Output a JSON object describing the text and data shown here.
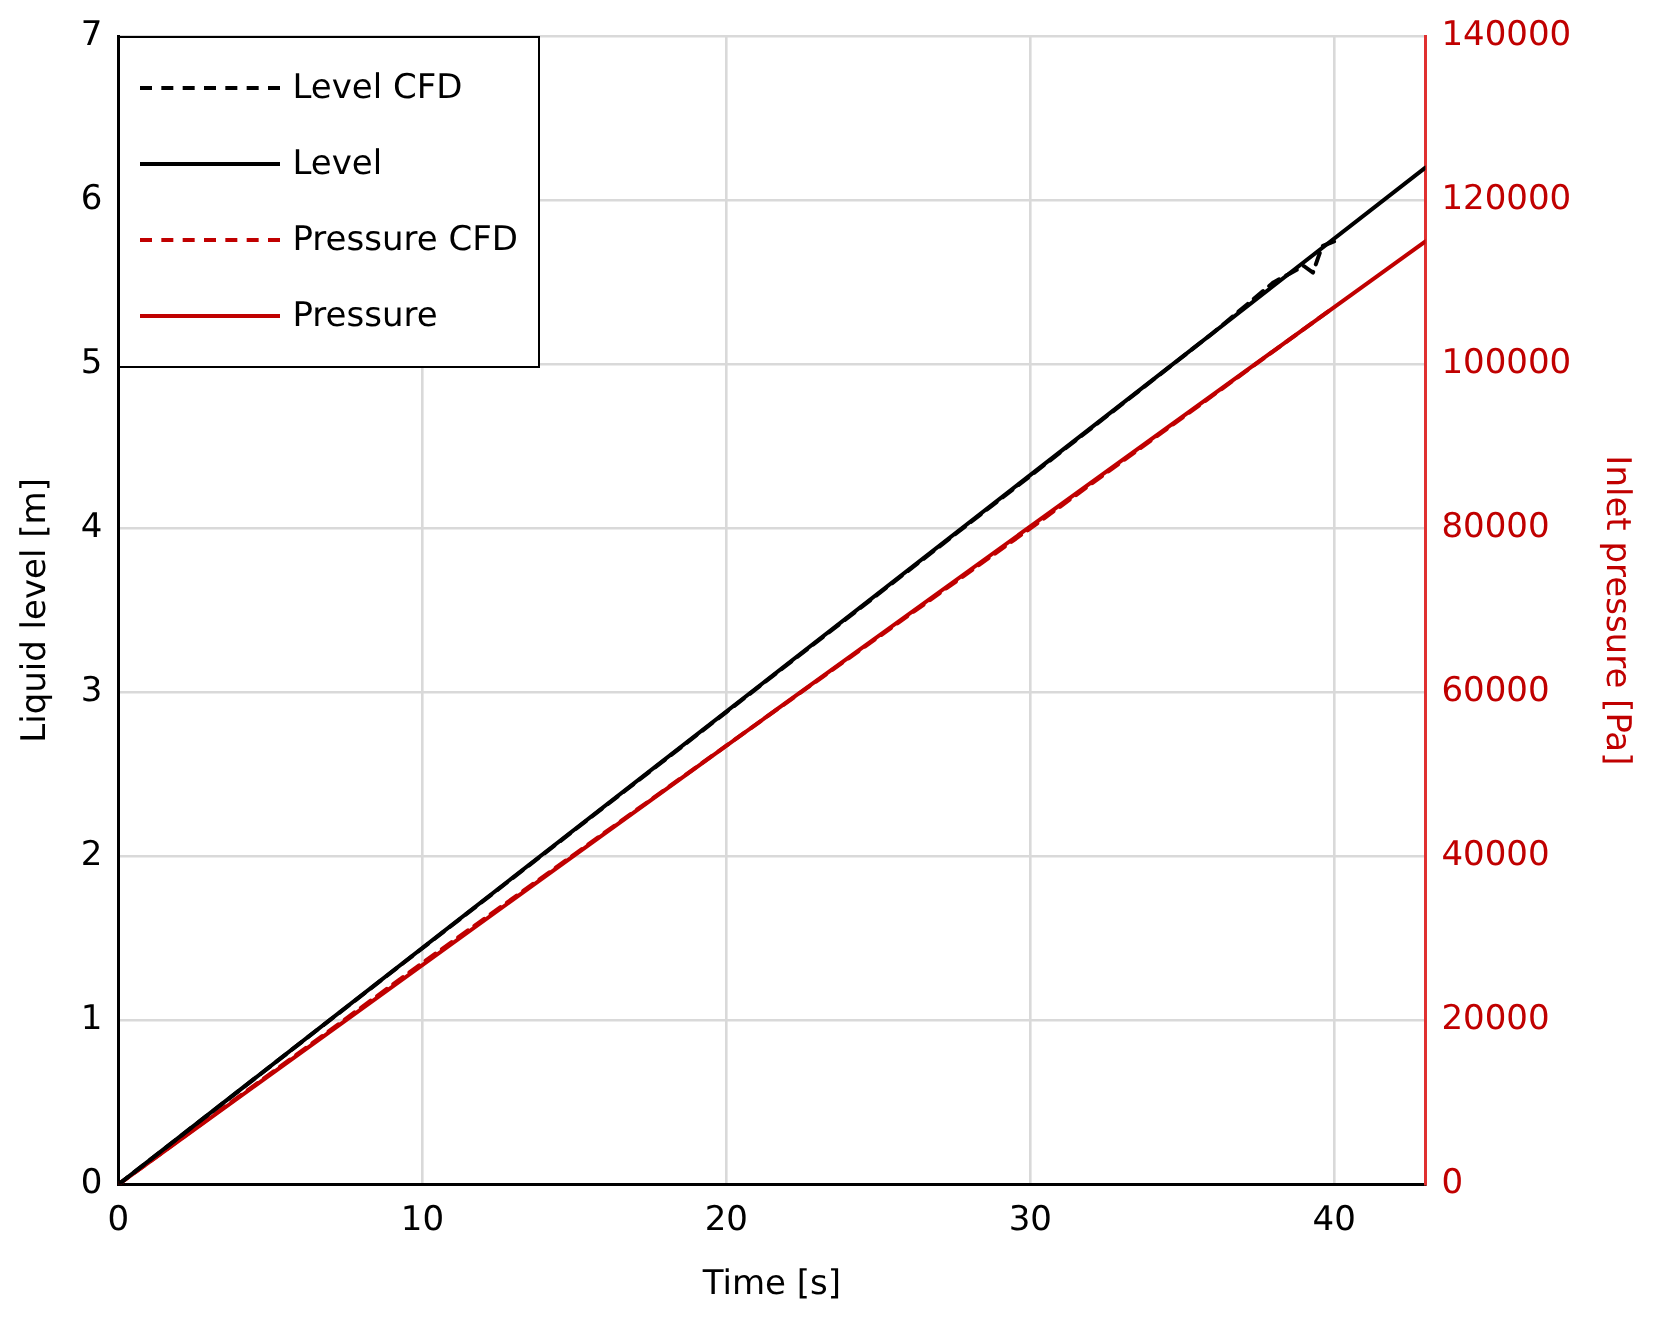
{
  "chart_data": {
    "type": "line",
    "xlabel": "Time [s]",
    "ylabel": "Liquid level [m]",
    "y2label": "Inlet pressure [Pa]",
    "xlim": [
      0,
      43
    ],
    "xticks": [
      0,
      10,
      20,
      30,
      40
    ],
    "ylim": [
      0,
      7
    ],
    "yticks": [
      0,
      1,
      2,
      3,
      4,
      5,
      6,
      7
    ],
    "y2lim": [
      0,
      140000
    ],
    "y2ticks": [
      0,
      20000,
      40000,
      60000,
      80000,
      100000,
      120000,
      140000
    ],
    "grid": true,
    "legend": "top left",
    "marker": "none",
    "series": [
      {
        "name": "Level CFD",
        "color": "#000000",
        "line_style": "dashed",
        "x": [
          0,
          10,
          20,
          30,
          36,
          38,
          38.5,
          39,
          39.3,
          39.6,
          40
        ],
        "values": [
          0,
          1.44,
          2.88,
          4.32,
          5.19,
          5.5,
          5.55,
          5.6,
          5.56,
          5.72,
          5.75
        ]
      },
      {
        "name": "Level",
        "color": "#000000",
        "line_style": "solid",
        "x": [
          0,
          43
        ],
        "values": [
          0,
          6.2
        ]
      },
      {
        "name": "Pressure CFD",
        "color": "#c00000",
        "line_style": "dashed",
        "axis": "y2",
        "x": [
          0,
          10,
          20,
          30,
          40
        ],
        "values": [
          0,
          27000,
          53500,
          80000,
          107000
        ]
      },
      {
        "name": "Pressure",
        "color": "#c00000",
        "line_style": "solid",
        "axis": "y2",
        "x": [
          0,
          43
        ],
        "values": [
          0,
          115000
        ]
      }
    ]
  }
}
